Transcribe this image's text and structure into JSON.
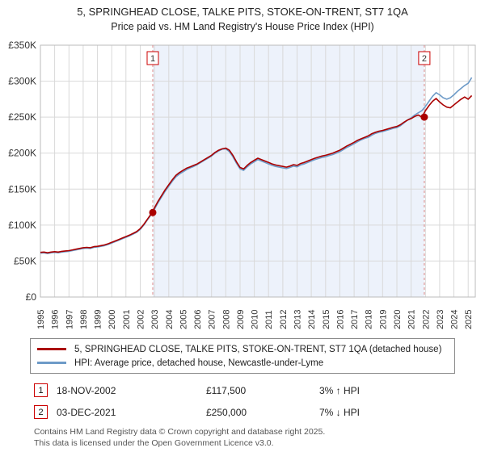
{
  "header": {
    "title": "5, SPRINGHEAD CLOSE, TALKE PITS, STOKE-ON-TRENT, ST7 1QA",
    "subtitle": "Price paid vs. HM Land Registry's House Price Index (HPI)"
  },
  "chart_data": {
    "type": "line",
    "x_start": 1995,
    "x_step": 0.25,
    "x_range": [
      1995,
      2025.5
    ],
    "ylim": [
      0,
      350
    ],
    "y_unit": "£K",
    "grid": true,
    "y_tick_values": [
      0,
      50,
      100,
      150,
      200,
      250,
      300,
      350
    ],
    "y_tick_labels": [
      "£0",
      "£50K",
      "£100K",
      "£150K",
      "£200K",
      "£250K",
      "£300K",
      "£350K"
    ],
    "x_ticks": [
      1995,
      1996,
      1997,
      1998,
      1999,
      2000,
      2001,
      2002,
      2003,
      2004,
      2005,
      2006,
      2007,
      2008,
      2009,
      2010,
      2011,
      2012,
      2013,
      2014,
      2015,
      2016,
      2017,
      2018,
      2019,
      2020,
      2021,
      2022,
      2023,
      2024,
      2025
    ],
    "shaded_region": {
      "from": 2002.88,
      "to": 2021.92,
      "color": "#edf2fb"
    },
    "series": [
      {
        "name": "5, SPRINGHEAD CLOSE, TALKE PITS, STOKE-ON-TRENT, ST7 1QA (detached house)",
        "color": "#aa0000",
        "values": [
          62,
          62.5,
          61.5,
          62.5,
          63,
          62.5,
          63.5,
          64,
          64.5,
          65.5,
          66.5,
          67.5,
          68.5,
          69,
          68.5,
          70,
          70.5,
          71.5,
          72.5,
          74,
          76,
          78,
          80,
          82,
          84,
          86,
          88.5,
          91,
          95,
          101,
          108,
          115,
          124,
          133,
          141,
          149,
          156,
          163,
          169,
          173,
          176,
          179,
          181,
          183,
          185,
          188,
          191,
          194,
          197,
          201,
          204,
          206,
          207,
          204,
          197,
          188,
          180,
          178,
          183,
          187,
          190,
          193,
          191,
          189,
          187,
          185,
          183.5,
          182.5,
          181.5,
          180.5,
          182,
          184,
          183,
          185.5,
          187,
          189,
          191,
          193,
          194.5,
          196,
          197,
          198.5,
          200,
          202,
          204,
          207,
          210,
          212.5,
          215,
          218,
          220,
          222,
          224,
          227,
          229,
          230.5,
          231.5,
          233,
          234.5,
          236,
          237,
          239.5,
          243,
          246,
          248,
          251,
          253,
          250,
          259,
          266,
          272,
          276,
          271,
          267,
          264,
          263,
          267,
          271,
          275,
          278,
          275,
          280
        ]
      },
      {
        "name": "HPI: Average price, detached house, Newcastle-under-Lyme",
        "color": "#6e9bc8",
        "values": [
          61,
          61.5,
          60.5,
          61.5,
          62,
          61.5,
          62.5,
          63,
          63.5,
          64.5,
          65.5,
          66.5,
          67.5,
          68,
          67.5,
          69,
          69.5,
          70.5,
          71.5,
          73,
          75,
          77,
          79,
          81,
          83,
          85,
          87.5,
          90,
          94,
          100,
          107,
          114,
          122,
          131,
          139,
          147,
          154,
          161,
          167,
          171,
          174,
          177,
          179.5,
          181.5,
          184,
          187,
          190,
          193,
          196,
          200,
          203,
          205.5,
          206,
          202,
          195,
          186,
          178,
          176,
          181,
          185,
          188,
          191,
          189,
          187,
          185,
          183,
          181.5,
          180.5,
          179.5,
          178.5,
          180,
          182,
          181,
          183.5,
          185,
          187,
          189,
          191,
          192.5,
          194,
          195,
          196.5,
          198,
          200,
          202,
          205,
          208,
          210.5,
          213,
          216,
          218.5,
          220.5,
          222,
          225,
          227.5,
          229,
          230,
          231.5,
          233,
          234.5,
          235.5,
          238,
          242,
          246,
          249,
          253,
          256,
          259,
          265,
          272,
          279,
          284,
          281,
          277,
          275,
          277,
          281,
          286,
          290,
          294,
          297,
          305
        ]
      }
    ],
    "markers": [
      {
        "label": "1",
        "x": 2002.88,
        "y": 117.5,
        "color": "#aa0000"
      },
      {
        "label": "2",
        "x": 2021.92,
        "y": 250,
        "color": "#aa0000"
      }
    ]
  },
  "legend": [
    {
      "label": "5, SPRINGHEAD CLOSE, TALKE PITS, STOKE-ON-TRENT, ST7 1QA (detached house)",
      "color": "#aa0000"
    },
    {
      "label": "HPI: Average price, detached house, Newcastle-under-Lyme",
      "color": "#6e9bc8"
    }
  ],
  "annotations": [
    {
      "num": "1",
      "date": "18-NOV-2002",
      "price": "£117,500",
      "hpi": "3% ↑ HPI"
    },
    {
      "num": "2",
      "date": "03-DEC-2021",
      "price": "£250,000",
      "hpi": "7% ↓ HPI"
    }
  ],
  "footer": {
    "line1": "Contains HM Land Registry data © Crown copyright and database right 2025.",
    "line2": "This data is licensed under the Open Government Licence v3.0."
  }
}
